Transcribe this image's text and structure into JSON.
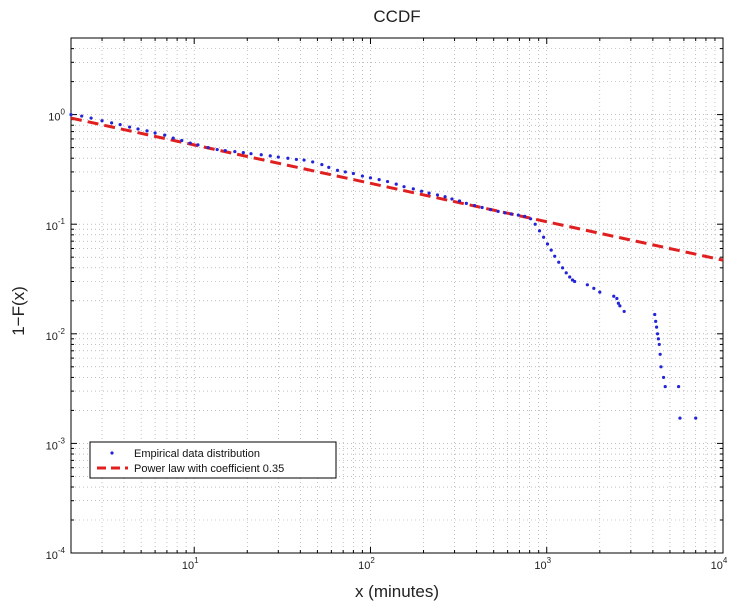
{
  "chart_data": {
    "type": "scatter",
    "title": "CCDF",
    "xlabel": "x (minutes)",
    "ylabel": "1−F(x)",
    "xscale": "log",
    "yscale": "log",
    "xlim": [
      2,
      10000
    ],
    "ylim": [
      0.0001,
      5
    ],
    "grid": true,
    "legend_position": "lower-left",
    "x_ticks": [
      {
        "base": "10",
        "exp": "1",
        "value": 10
      },
      {
        "base": "10",
        "exp": "2",
        "value": 100
      },
      {
        "base": "10",
        "exp": "3",
        "value": 1000
      },
      {
        "base": "10",
        "exp": "4",
        "value": 10000
      }
    ],
    "y_ticks": [
      {
        "base": "10",
        "exp": "0",
        "value": 1
      },
      {
        "base": "10",
        "exp": "-1",
        "value": 0.1
      },
      {
        "base": "10",
        "exp": "-2",
        "value": 0.01
      },
      {
        "base": "10",
        "exp": "-3",
        "value": 0.001
      },
      {
        "base": "10",
        "exp": "-4",
        "value": 0.0001
      }
    ],
    "series": [
      {
        "name": "Empirical data distribution",
        "kind": "scatter",
        "color": "#2323d8",
        "points": [
          [
            2,
            1.0
          ],
          [
            2.3,
            0.97
          ],
          [
            2.6,
            0.93
          ],
          [
            3,
            0.88
          ],
          [
            3.4,
            0.84
          ],
          [
            3.8,
            0.81
          ],
          [
            4.3,
            0.77
          ],
          [
            4.8,
            0.74
          ],
          [
            5.4,
            0.71
          ],
          [
            6,
            0.68
          ],
          [
            6.8,
            0.65
          ],
          [
            7.6,
            0.61
          ],
          [
            8.5,
            0.58
          ],
          [
            9.5,
            0.55
          ],
          [
            10.5,
            0.53
          ],
          [
            12,
            0.5
          ],
          [
            13.5,
            0.48
          ],
          [
            15,
            0.47
          ],
          [
            17,
            0.46
          ],
          [
            19,
            0.45
          ],
          [
            21,
            0.44
          ],
          [
            24,
            0.43
          ],
          [
            27,
            0.42
          ],
          [
            30,
            0.41
          ],
          [
            34,
            0.4
          ],
          [
            38,
            0.39
          ],
          [
            42,
            0.385
          ],
          [
            47,
            0.37
          ],
          [
            53,
            0.35
          ],
          [
            58,
            0.33
          ],
          [
            65,
            0.31
          ],
          [
            72,
            0.3
          ],
          [
            80,
            0.29
          ],
          [
            90,
            0.275
          ],
          [
            100,
            0.265
          ],
          [
            112,
            0.255
          ],
          [
            125,
            0.245
          ],
          [
            140,
            0.232
          ],
          [
            155,
            0.22
          ],
          [
            175,
            0.21
          ],
          [
            195,
            0.2
          ],
          [
            215,
            0.192
          ],
          [
            240,
            0.185
          ],
          [
            265,
            0.178
          ],
          [
            290,
            0.17
          ],
          [
            320,
            0.163
          ],
          [
            350,
            0.155
          ],
          [
            390,
            0.148
          ],
          [
            430,
            0.142
          ],
          [
            480,
            0.136
          ],
          [
            530,
            0.131
          ],
          [
            580,
            0.127
          ],
          [
            630,
            0.124
          ],
          [
            690,
            0.121
          ],
          [
            750,
            0.118
          ],
          [
            810,
            0.112
          ],
          [
            860,
            0.1
          ],
          [
            910,
            0.087
          ],
          [
            960,
            0.076
          ],
          [
            1010,
            0.066
          ],
          [
            1060,
            0.058
          ],
          [
            1110,
            0.051
          ],
          [
            1170,
            0.045
          ],
          [
            1230,
            0.04
          ],
          [
            1290,
            0.036
          ],
          [
            1350,
            0.033
          ],
          [
            1400,
            0.031
          ],
          [
            1440,
            0.03
          ],
          [
            1700,
            0.028
          ],
          [
            1850,
            0.026
          ],
          [
            2000,
            0.024
          ],
          [
            2400,
            0.022
          ],
          [
            2500,
            0.021
          ],
          [
            2550,
            0.019
          ],
          [
            2600,
            0.018
          ],
          [
            2750,
            0.016
          ],
          [
            4100,
            0.015
          ],
          [
            4150,
            0.013
          ],
          [
            4200,
            0.0115
          ],
          [
            4250,
            0.01
          ],
          [
            4300,
            0.009
          ],
          [
            4350,
            0.008
          ],
          [
            4400,
            0.0065
          ],
          [
            4450,
            0.005
          ],
          [
            4600,
            0.004
          ],
          [
            4700,
            0.0033
          ],
          [
            5600,
            0.0033
          ],
          [
            5700,
            0.0017
          ],
          [
            7000,
            0.0017
          ]
        ]
      },
      {
        "name": "Power law with coefficient 0.35",
        "kind": "line",
        "style": "dashed",
        "color": "#e02020",
        "x": [
          2,
          10000
        ],
        "y": [
          0.93,
          0.047
        ]
      }
    ]
  }
}
